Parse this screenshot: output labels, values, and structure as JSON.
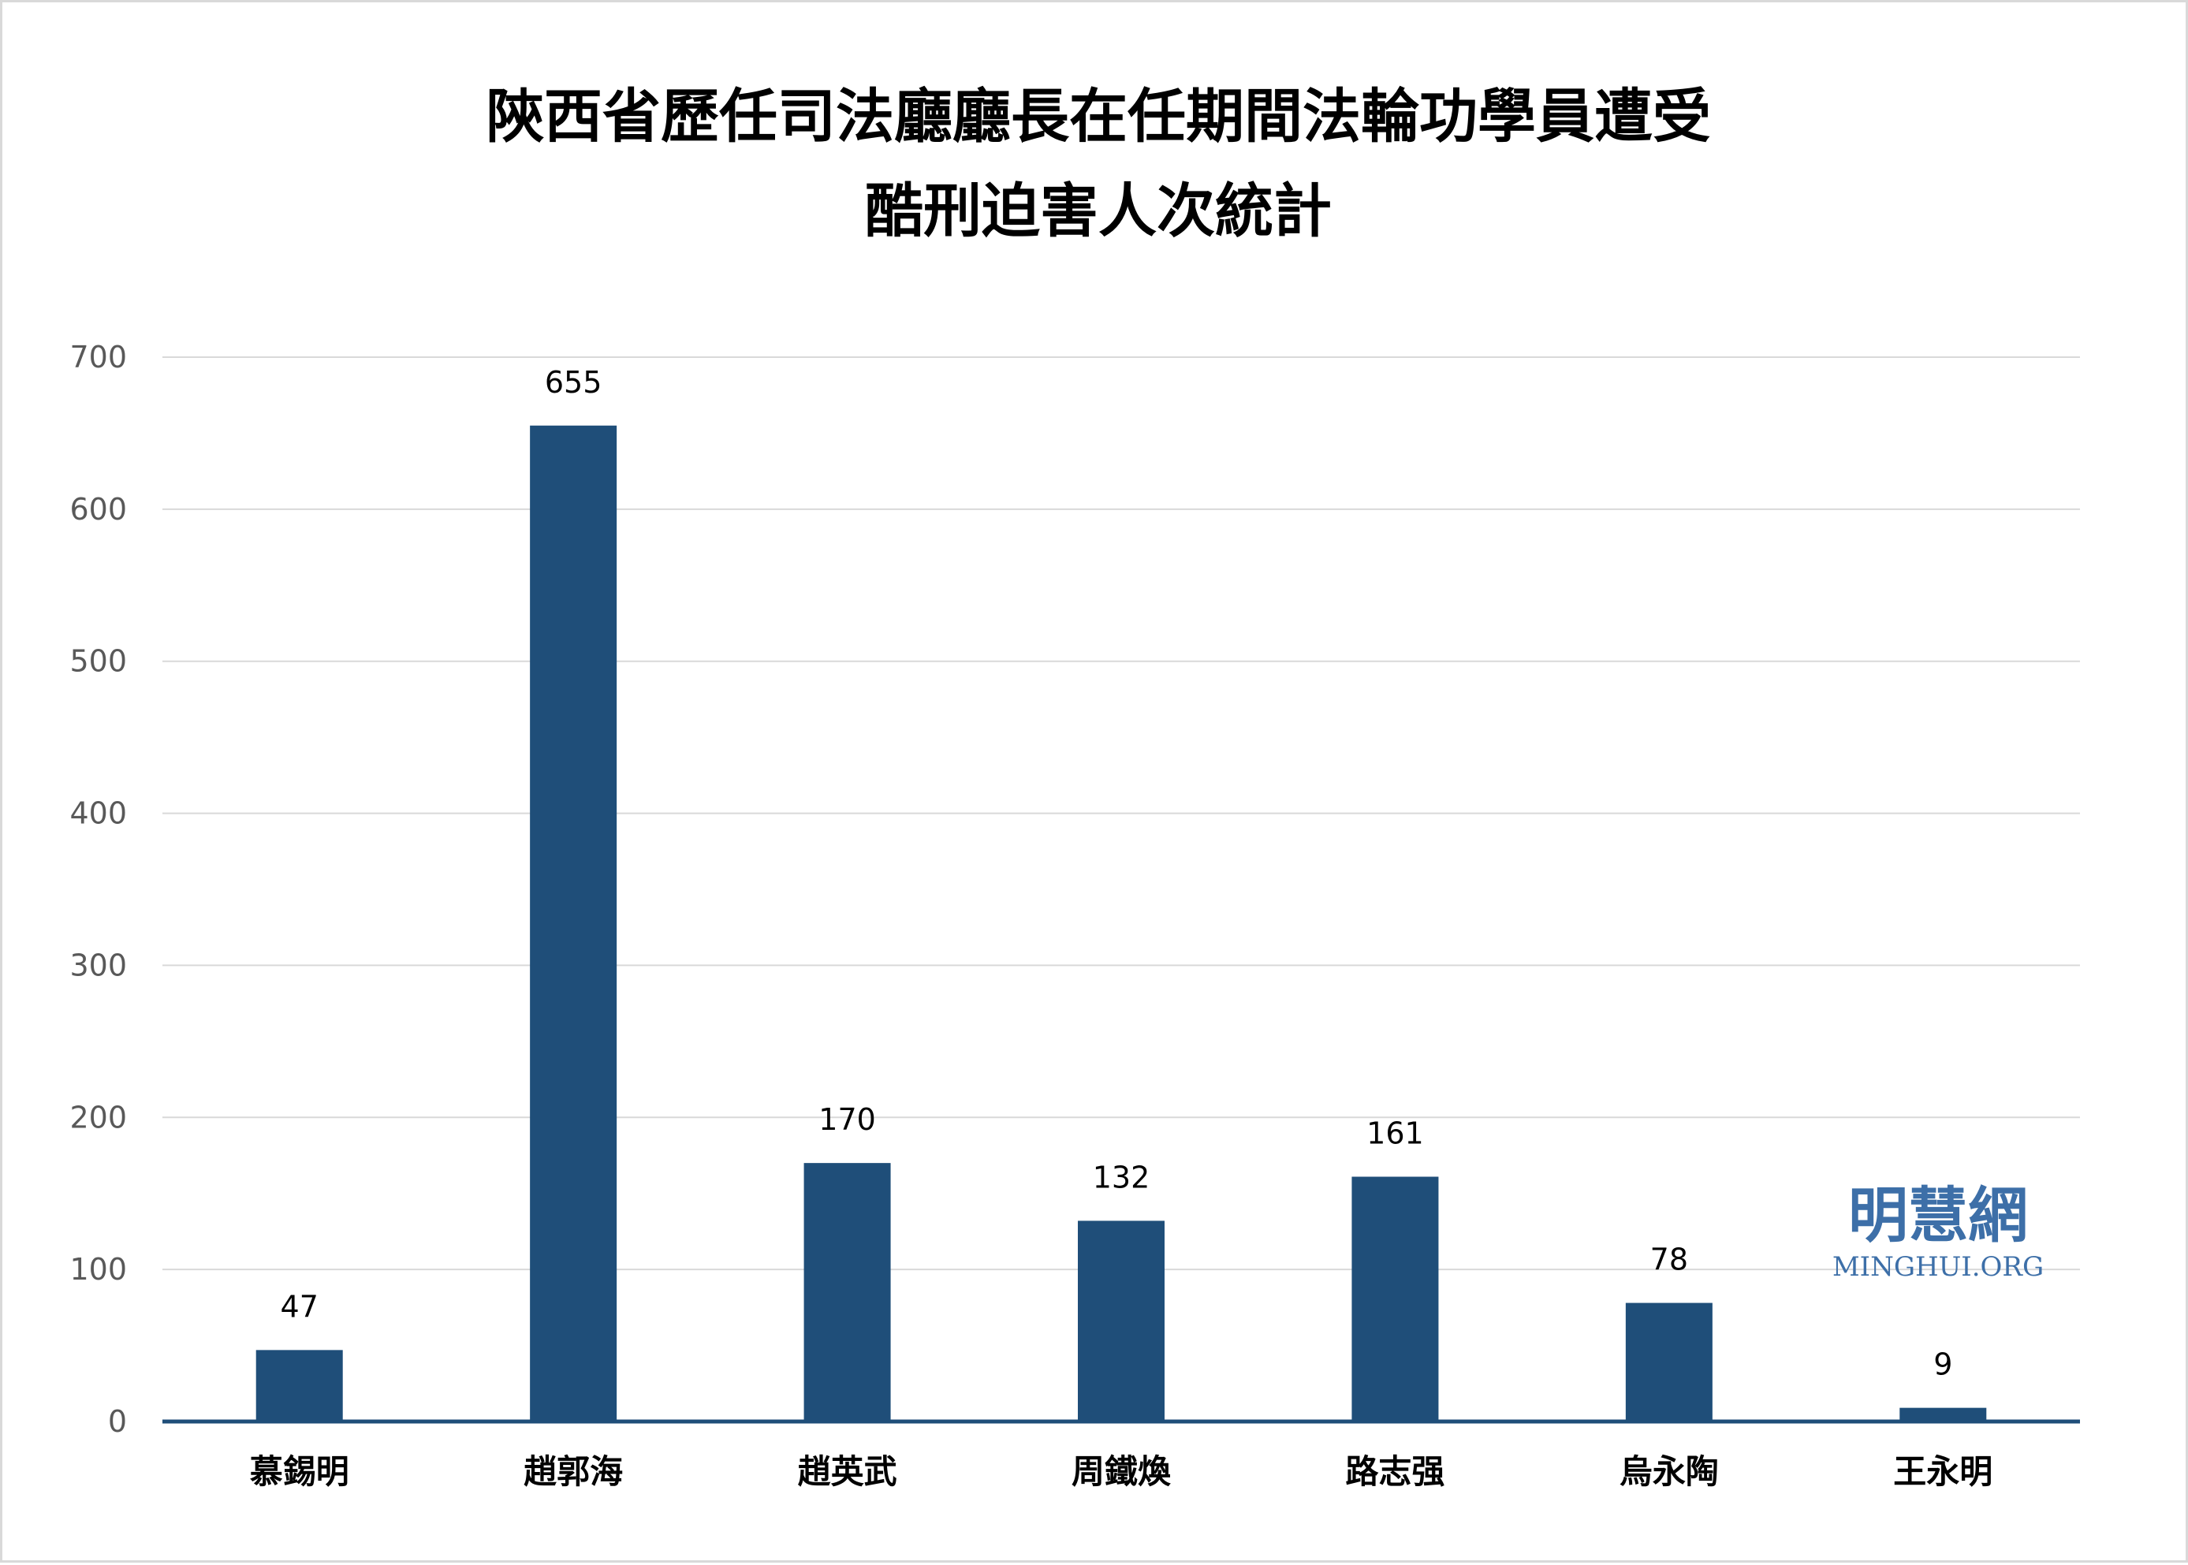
{
  "chart_data": {
    "type": "bar",
    "title": "陝西省歷任司法廳廳長在任期間法輪功學員遭受",
    "subtitle": "酷刑迫害人次統計",
    "categories": [
      "慕錫明",
      "趙郭海",
      "趙英武",
      "周鐵煥",
      "路志强",
      "烏永陶",
      "王永明"
    ],
    "values": [
      47,
      655,
      170,
      132,
      161,
      78,
      9
    ],
    "ylim": [
      0,
      700
    ],
    "yticks": [
      0,
      100,
      200,
      300,
      400,
      500,
      600,
      700
    ],
    "xlabel": "",
    "ylabel": "",
    "grid": true,
    "data_labels": true,
    "bar_color": "#1f4e79",
    "gridline_color": "#d9d9d9"
  },
  "watermark": {
    "chinese": "明慧網",
    "latin": "MINGHUI.ORG",
    "color": "#3d6fa8"
  }
}
